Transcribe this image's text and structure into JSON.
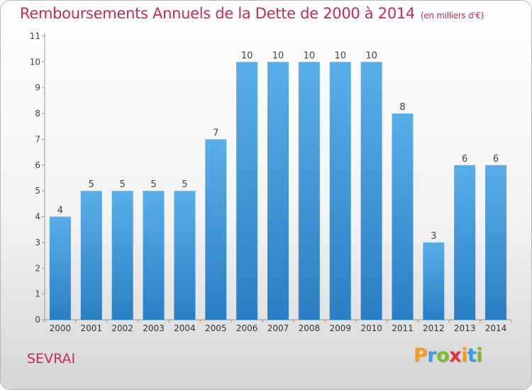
{
  "title": "Remboursements Annuels de la Dette de 2000 à 2014",
  "unit": "(en milliers d'€)",
  "commune": "SEVRAI",
  "logo": {
    "letters": [
      "P",
      "r",
      "o",
      "x",
      "i",
      "t",
      "i"
    ],
    "colors": [
      "#f39c1f",
      "#3d9be0",
      "#7bbd2a",
      "#e2353b",
      "#f39c1f",
      "#3d9be0",
      "#7bbd2a"
    ]
  },
  "colors": {
    "bar_top": "#5aaee8",
    "bar_bottom": "#2a7fc4",
    "title": "#c8285a"
  },
  "chart_data": {
    "type": "bar",
    "title": "Remboursements Annuels de la Dette de 2000 à 2014",
    "categories": [
      "2000",
      "2001",
      "2002",
      "2003",
      "2004",
      "2005",
      "2006",
      "2007",
      "2008",
      "2009",
      "2010",
      "2011",
      "2012",
      "2013",
      "2014"
    ],
    "values": [
      4,
      5,
      5,
      5,
      5,
      7,
      10,
      10,
      10,
      10,
      10,
      8,
      3,
      6,
      6
    ],
    "ylim": [
      0,
      11
    ],
    "yticks": [
      0,
      1,
      2,
      3,
      4,
      5,
      6,
      7,
      8,
      9,
      10,
      11
    ],
    "grid": false,
    "xlabel": "",
    "ylabel": ""
  }
}
